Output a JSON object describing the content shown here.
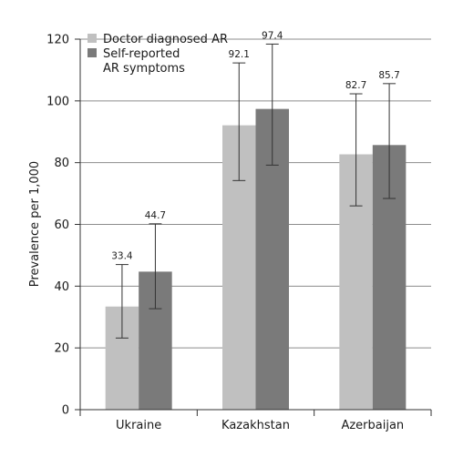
{
  "chart_data": {
    "type": "bar",
    "title": "",
    "xlabel": "",
    "ylabel": "Prevalence per 1,000",
    "ylim": [
      0,
      120
    ],
    "yticks": [
      0,
      20,
      40,
      60,
      80,
      100,
      120
    ],
    "grid": "horizontal",
    "legend_position": "top-left",
    "categories": [
      "Ukraine",
      "Kazakhstan",
      "Azerbaijan"
    ],
    "series": [
      {
        "name": "Doctor diagnosed AR",
        "color": "#c0c0c0",
        "values": [
          33.4,
          92.1,
          82.7
        ],
        "error_low": [
          23.2,
          74.2,
          66.0
        ],
        "error_high": [
          47.0,
          112.3,
          102.3
        ]
      },
      {
        "name": "Self-reported AR symptoms",
        "legend_lines": [
          "Self-reported",
          "AR symptoms"
        ],
        "color": "#7a7a7a",
        "values": [
          44.7,
          97.4,
          85.7
        ],
        "error_low": [
          32.7,
          79.2,
          68.4
        ],
        "error_high": [
          60.2,
          118.4,
          105.6
        ]
      }
    ]
  }
}
